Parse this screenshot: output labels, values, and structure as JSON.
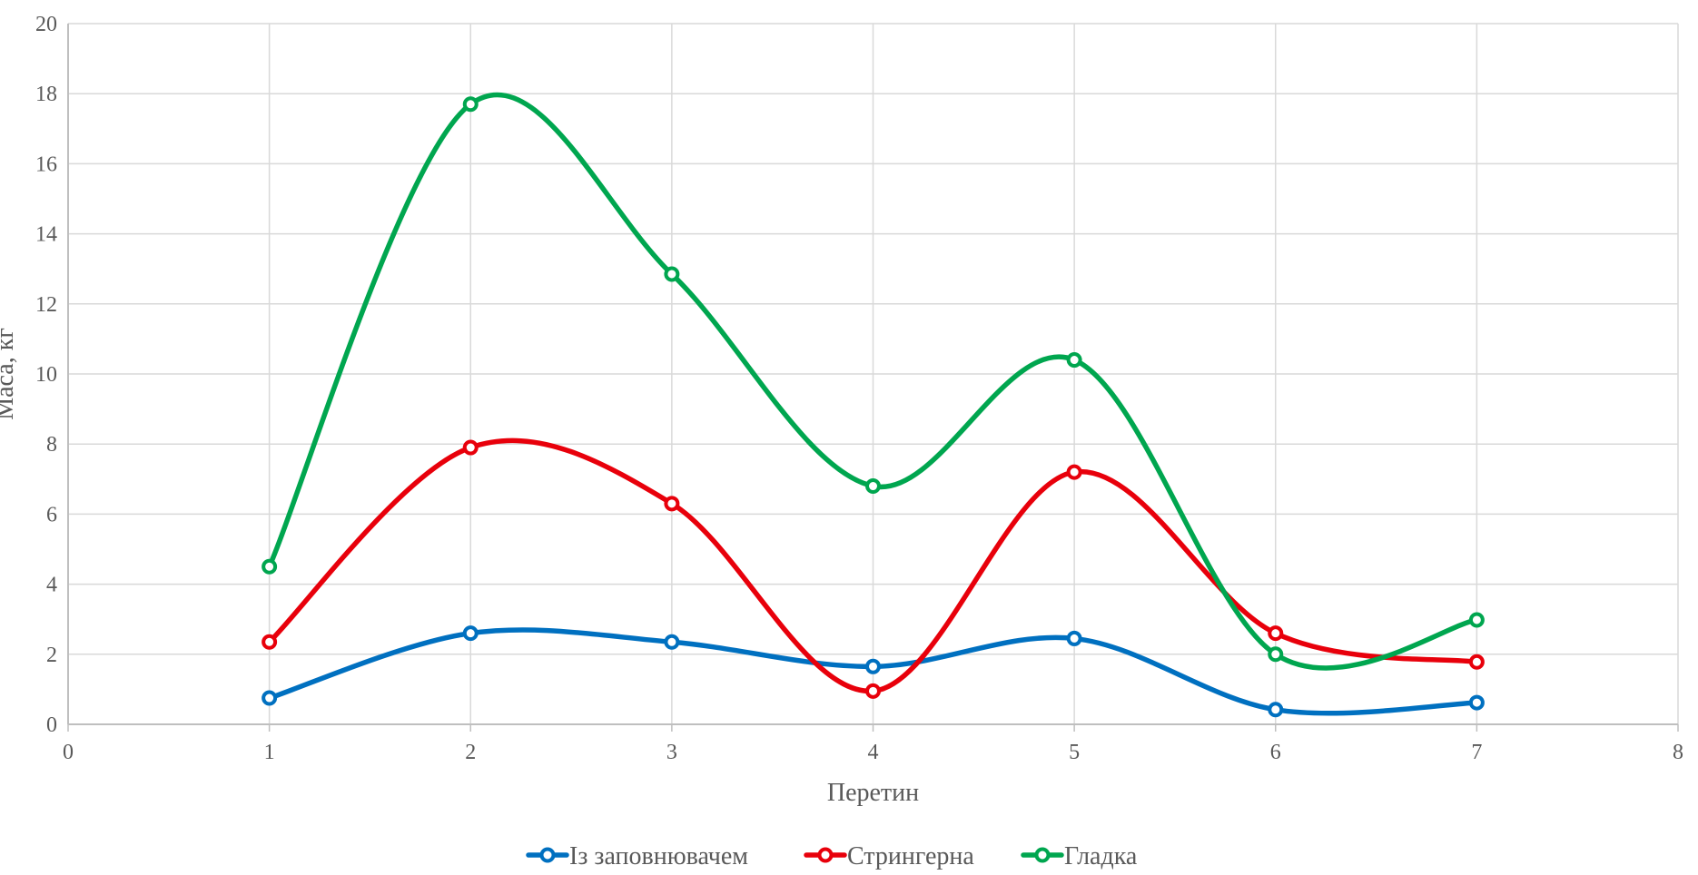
{
  "chart_data": {
    "type": "scatter",
    "title": "",
    "xlabel": "Перетин",
    "ylabel": "Маса, кг",
    "xlim": [
      0,
      8
    ],
    "ylim": [
      0,
      20
    ],
    "xticks": [
      "0",
      "1",
      "2",
      "3",
      "4",
      "5",
      "6",
      "7",
      "8"
    ],
    "yticks": [
      "0",
      "2",
      "4",
      "6",
      "8",
      "10",
      "12",
      "14",
      "16",
      "18",
      "20"
    ],
    "grid": true,
    "smooth_lines": true,
    "legend_position": "bottom",
    "x": [
      1,
      2,
      3,
      4,
      5,
      6,
      7
    ],
    "series": [
      {
        "name": "Із заповнювачем",
        "color": "#0070C0",
        "values": [
          0.75,
          2.6,
          2.35,
          1.65,
          2.45,
          0.42,
          0.62
        ]
      },
      {
        "name": "Стрингерна",
        "color": "#E8000B",
        "values": [
          2.35,
          7.9,
          6.3,
          0.95,
          7.2,
          2.6,
          1.78
        ]
      },
      {
        "name": "Гладка",
        "color": "#00A64F",
        "values": [
          4.5,
          17.7,
          12.85,
          6.8,
          10.4,
          2.0,
          2.98
        ]
      }
    ]
  }
}
